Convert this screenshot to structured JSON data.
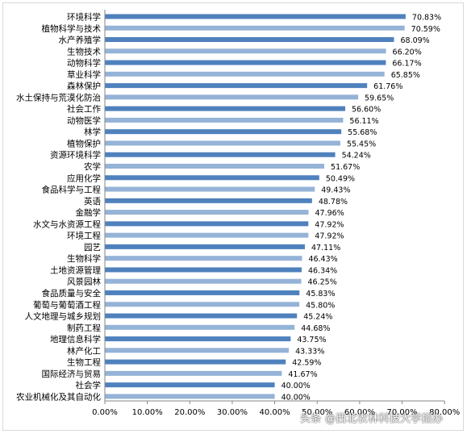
{
  "chart_data": {
    "type": "bar",
    "orientation": "horizontal",
    "categories": [
      "环境科学",
      "植物科学与技术",
      "水产养殖学",
      "生物技术",
      "动物科学",
      "草业科学",
      "森林保护",
      "水土保持与荒漠化防治",
      "社会工作",
      "动物医学",
      "林学",
      "植物保护",
      "资源环境科学",
      "农学",
      "应用化学",
      "食品科学与工程",
      "英语",
      "金融学",
      "水文与水资源工程",
      "环境工程",
      "园艺",
      "生物科学",
      "土地资源管理",
      "风景园林",
      "食品质量与安全",
      "葡萄与葡萄酒工程",
      "人文地理与城乡规划",
      "制药工程",
      "地理信息科学",
      "林产化工",
      "生物工程",
      "国际经济与贸易",
      "社会学",
      "农业机械化及其自动化"
    ],
    "values": [
      70.83,
      70.59,
      68.09,
      66.2,
      66.17,
      65.85,
      61.76,
      59.65,
      56.6,
      56.11,
      55.68,
      55.45,
      54.24,
      51.67,
      50.49,
      49.43,
      48.78,
      47.96,
      47.92,
      47.92,
      47.11,
      46.43,
      46.34,
      46.25,
      45.83,
      45.8,
      45.24,
      44.68,
      43.75,
      43.33,
      42.59,
      41.67,
      40.0,
      40.0
    ],
    "data_labels": [
      "70.83%",
      "70.59%",
      "68.09%",
      "66.20%",
      "66.17%",
      "65.85%",
      "61.76%",
      "59.65%",
      "56.60%",
      "56.11%",
      "55.68%",
      "55.45%",
      "54.24%",
      "51.67%",
      "50.49%",
      "49.43%",
      "48.78%",
      "47.96%",
      "47.92%",
      "47.92%",
      "47.11%",
      "46.43%",
      "46.34%",
      "46.25%",
      "45.83%",
      "45.80%",
      "45.24%",
      "44.68%",
      "43.75%",
      "43.33%",
      "42.59%",
      "41.67%",
      "40.00%",
      "40.00%"
    ],
    "x_ticks": [
      "0.00%",
      "10.00%",
      "20.00%",
      "30.00%",
      "40.00%",
      "50.00%",
      "60.00%",
      "70.00%",
      "80.00%"
    ],
    "xlim": [
      0,
      80
    ],
    "grid": false,
    "legend": "none",
    "colors": {
      "dark": "#4f81bd",
      "light": "#95b3d7",
      "axis": "#868686",
      "text": "#000000"
    }
  },
  "watermark": "头条 @西北农林科技大学招办"
}
